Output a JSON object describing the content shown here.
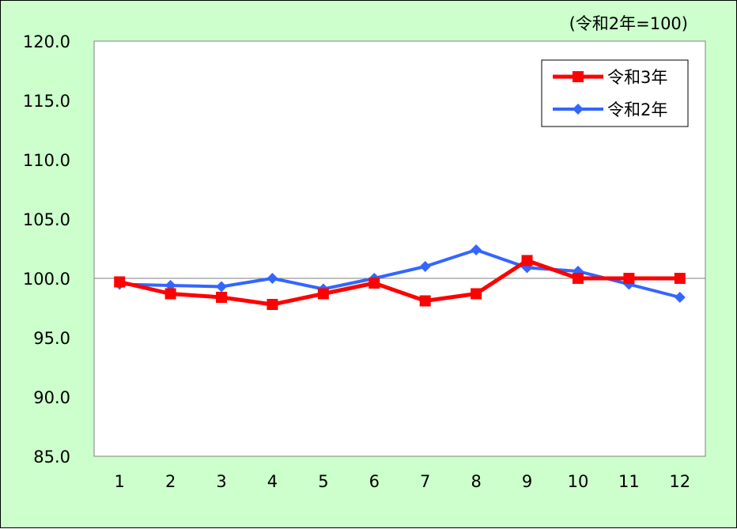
{
  "chart_data": {
    "type": "line",
    "unit_note": "(令和2年=100)",
    "categories": [
      "1",
      "2",
      "3",
      "4",
      "5",
      "6",
      "7",
      "8",
      "9",
      "10",
      "11",
      "12"
    ],
    "ylim": [
      85.0,
      120.0
    ],
    "y_ticks": [
      "85.0",
      "90.0",
      "95.0",
      "100.0",
      "105.0",
      "110.0",
      "115.0",
      "120.0"
    ],
    "grid": "horizontal line at 100.0 only",
    "legend_position": "top-right",
    "series": [
      {
        "name": "令和3年",
        "color": "#ff0000",
        "marker": "square",
        "values": [
          99.7,
          98.7,
          98.4,
          97.8,
          98.7,
          99.6,
          98.1,
          98.7,
          101.5,
          100.0,
          100.0,
          100.0
        ]
      },
      {
        "name": "令和2年",
        "color": "#3366ff",
        "marker": "diamond",
        "values": [
          99.5,
          99.4,
          99.3,
          100.0,
          99.1,
          100.0,
          101.0,
          102.4,
          100.9,
          100.6,
          99.5,
          98.4
        ]
      }
    ]
  }
}
